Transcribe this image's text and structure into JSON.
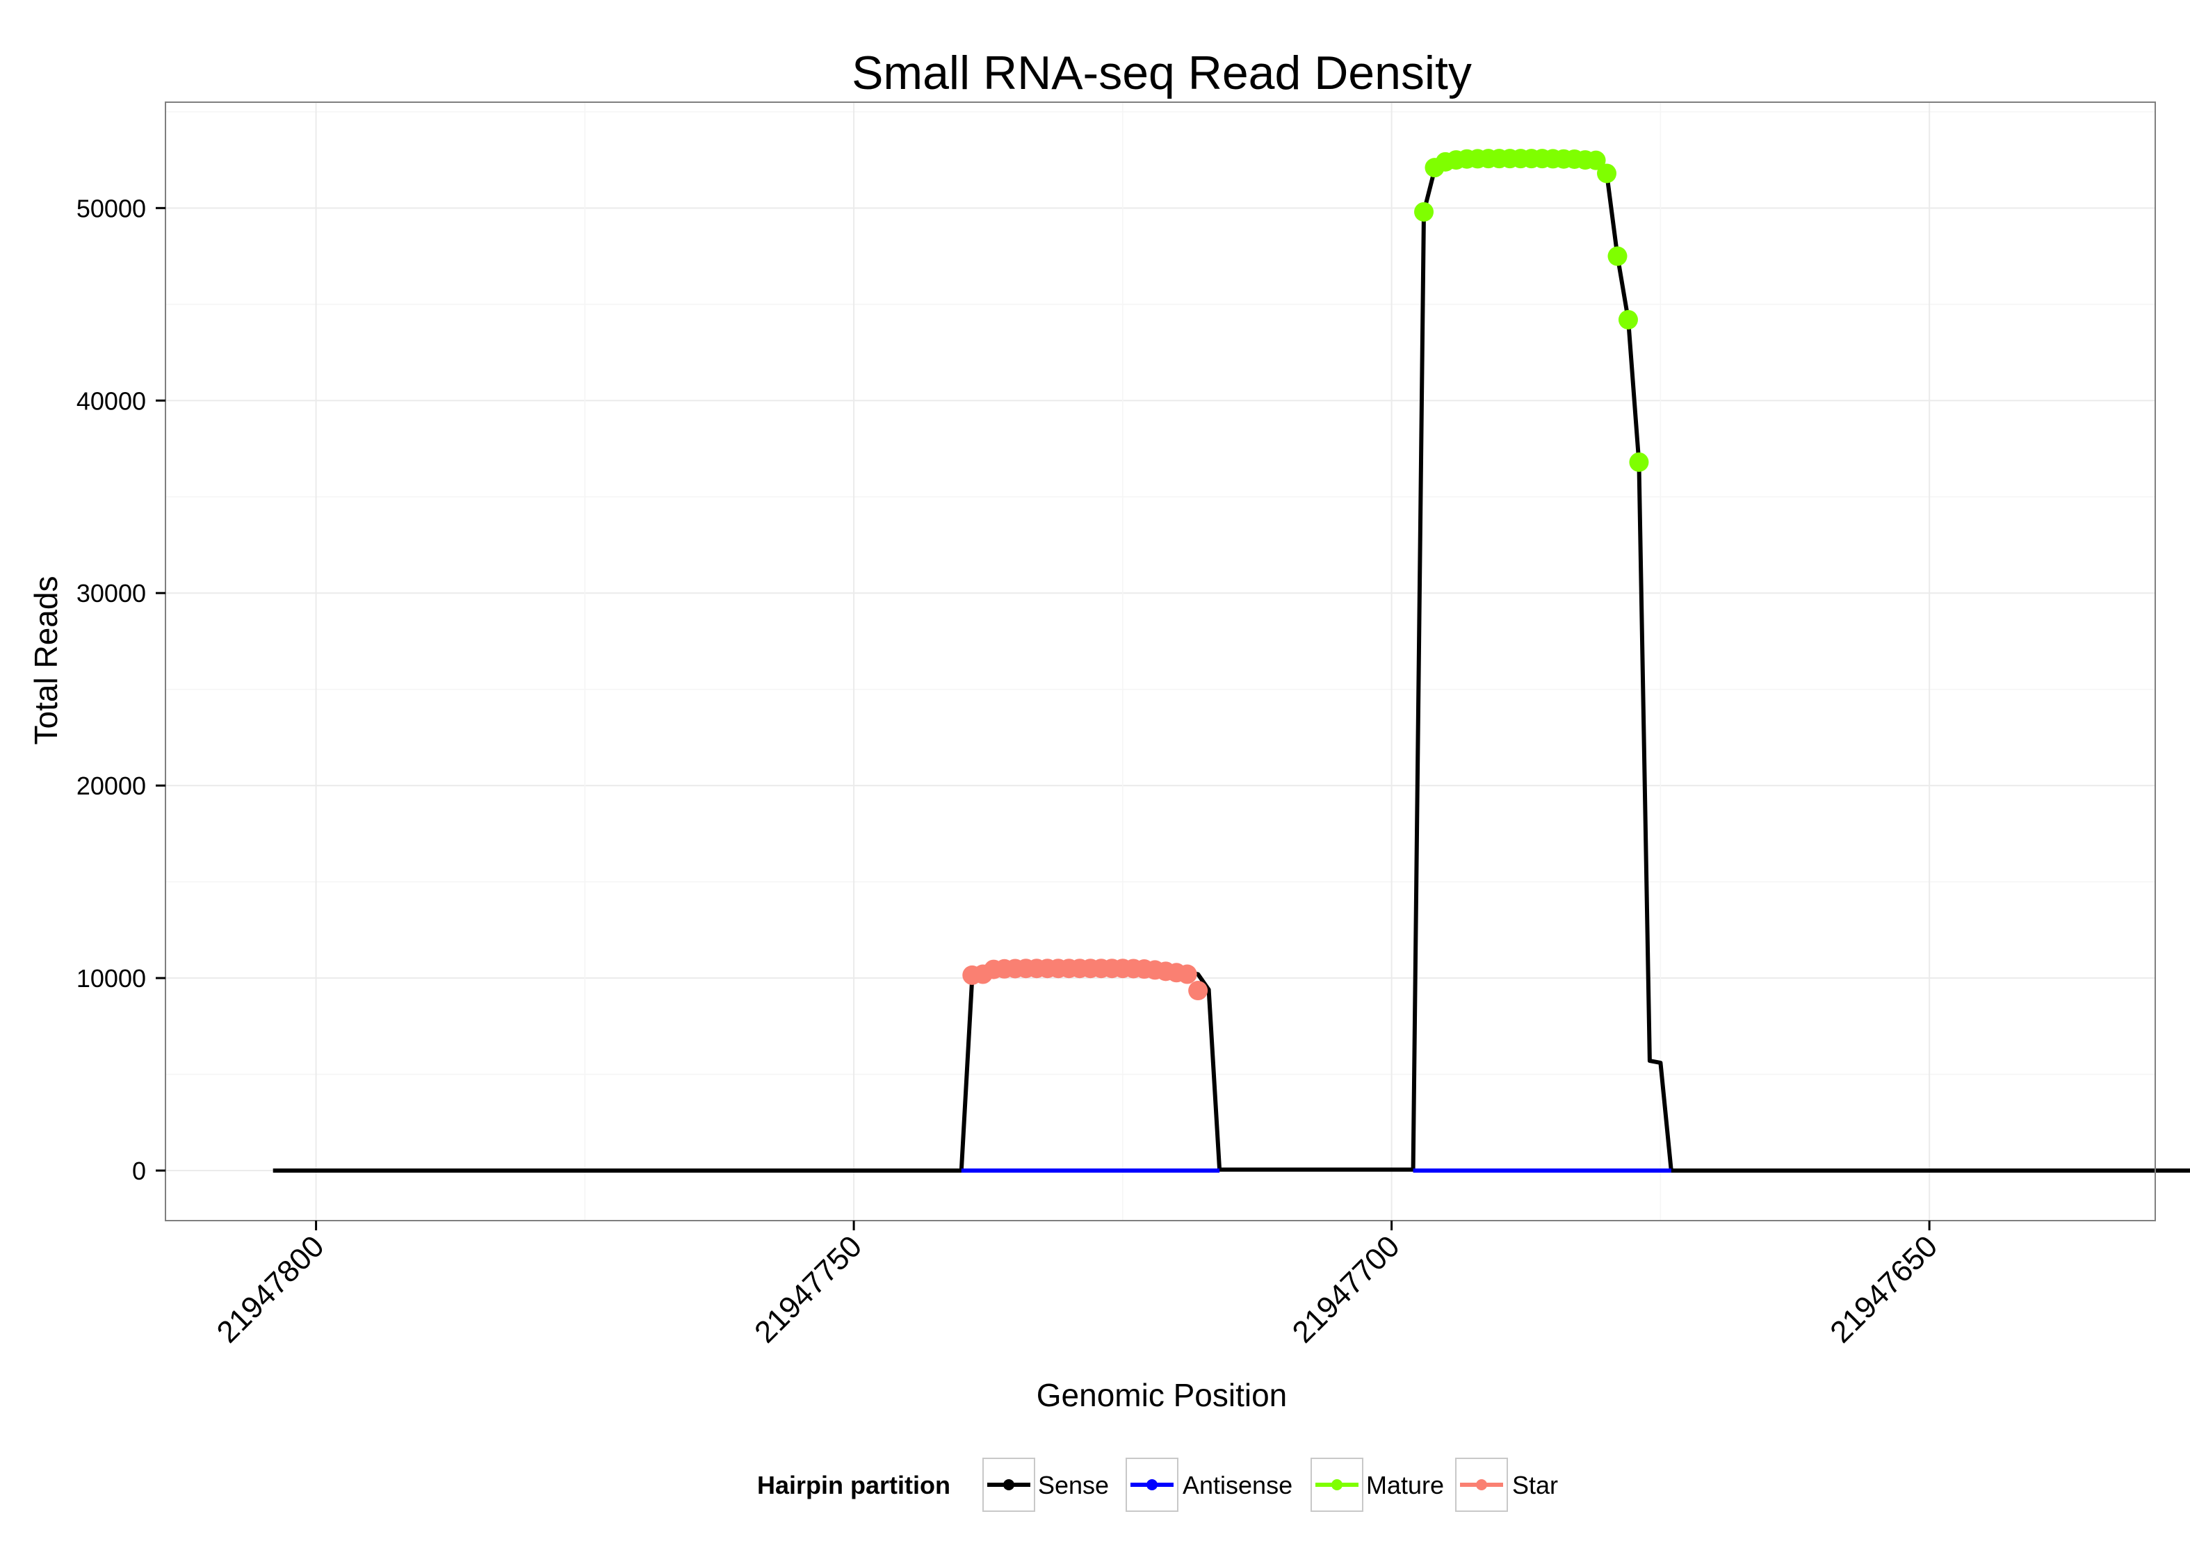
{
  "chart_data": {
    "type": "line",
    "title": "Small RNA-seq Read Density",
    "xlabel": "Genomic Position",
    "ylabel": "Total Reads",
    "x_reversed": true,
    "xlim": [
      21947814,
      21947629
    ],
    "ylim": [
      -2600,
      55500
    ],
    "x_ticks": [
      21947800,
      21947750,
      21947700,
      21947650
    ],
    "x_tick_labels": [
      "21947800",
      "21947750",
      "21947700",
      "21947650"
    ],
    "y_ticks": [
      0,
      10000,
      20000,
      30000,
      40000,
      50000
    ],
    "y_tick_labels": [
      "0",
      "10000",
      "20000",
      "30000",
      "40000",
      "50000"
    ],
    "grid": true,
    "legend_position": "bottom",
    "legend_title": "Hairpin partition",
    "colors": {
      "Sense": "#000000",
      "Antisense": "#0000ff",
      "Mature": "#7fff00",
      "Star": "#fa8072"
    },
    "series": [
      {
        "name": "Sense",
        "style": "line",
        "color": "#000000",
        "points": [
          [
            21947804,
            0
          ],
          [
            21947740,
            0
          ],
          [
            21947739,
            10000
          ],
          [
            21947738,
            10200
          ],
          [
            21947737,
            10400
          ],
          [
            21947735,
            10450
          ],
          [
            21947730,
            10480
          ],
          [
            21947725,
            10490
          ],
          [
            21947720,
            10450
          ],
          [
            21947718,
            10200
          ],
          [
            21947717,
            9400
          ],
          [
            21947716,
            50
          ],
          [
            21947698,
            50
          ],
          [
            21947697,
            49800
          ],
          [
            21947696,
            52000
          ],
          [
            21947695,
            52400
          ],
          [
            21947693,
            52500
          ],
          [
            21947685,
            52550
          ],
          [
            21947681,
            52500
          ],
          [
            21947680,
            51800
          ],
          [
            21947679,
            47500
          ],
          [
            21947678,
            44200
          ],
          [
            21947677,
            36800
          ],
          [
            21947676,
            5700
          ],
          [
            21947675,
            5600
          ],
          [
            21947674,
            0
          ],
          [
            21947612,
            0
          ]
        ]
      },
      {
        "name": "Antisense",
        "style": "line",
        "color": "#0000ff",
        "points": [
          [
            21947740,
            0
          ],
          [
            21947716,
            0
          ],
          [
            21947698,
            0
          ],
          [
            21947674,
            0
          ]
        ]
      },
      {
        "name": "Mature",
        "style": "points",
        "color": "#7fff00",
        "points": [
          [
            21947697,
            49800
          ],
          [
            21947696,
            52100
          ],
          [
            21947695,
            52400
          ],
          [
            21947694,
            52500
          ],
          [
            21947693,
            52550
          ],
          [
            21947692,
            52560
          ],
          [
            21947691,
            52570
          ],
          [
            21947690,
            52570
          ],
          [
            21947689,
            52570
          ],
          [
            21947688,
            52570
          ],
          [
            21947687,
            52570
          ],
          [
            21947686,
            52570
          ],
          [
            21947685,
            52560
          ],
          [
            21947684,
            52550
          ],
          [
            21947683,
            52540
          ],
          [
            21947682,
            52500
          ],
          [
            21947681,
            52480
          ],
          [
            21947680,
            51800
          ],
          [
            21947679,
            47500
          ],
          [
            21947678,
            44200
          ],
          [
            21947677,
            36800
          ]
        ]
      },
      {
        "name": "Star",
        "style": "points",
        "color": "#fa8072",
        "points": [
          [
            21947739,
            10150
          ],
          [
            21947738,
            10200
          ],
          [
            21947737,
            10450
          ],
          [
            21947736,
            10480
          ],
          [
            21947735,
            10490
          ],
          [
            21947734,
            10500
          ],
          [
            21947733,
            10500
          ],
          [
            21947732,
            10500
          ],
          [
            21947731,
            10500
          ],
          [
            21947730,
            10500
          ],
          [
            21947729,
            10500
          ],
          [
            21947728,
            10500
          ],
          [
            21947727,
            10500
          ],
          [
            21947726,
            10500
          ],
          [
            21947725,
            10500
          ],
          [
            21947724,
            10490
          ],
          [
            21947723,
            10470
          ],
          [
            21947722,
            10420
          ],
          [
            21947721,
            10350
          ],
          [
            21947720,
            10280
          ],
          [
            21947719,
            10200
          ],
          [
            21947718,
            9350
          ]
        ]
      }
    ]
  }
}
